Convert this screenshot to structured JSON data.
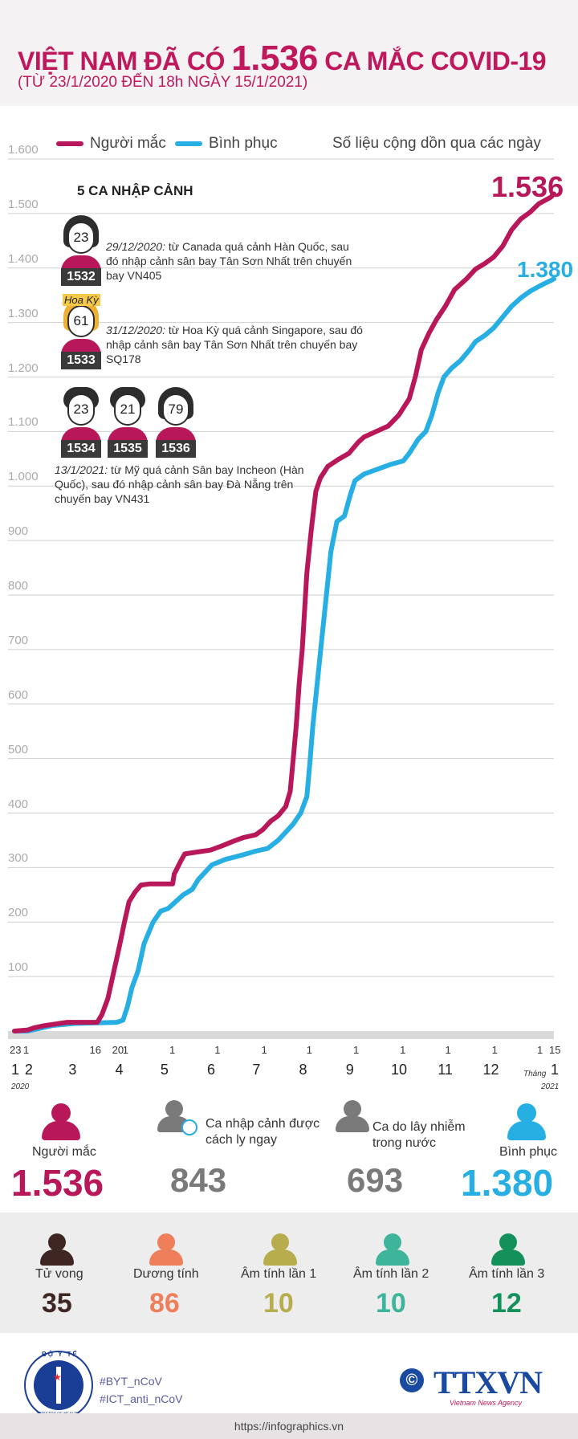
{
  "header": {
    "title_pre": "VIỆT NAM ĐÃ CÓ",
    "title_num": "1.536",
    "title_post": "CA MẮC COVID-19",
    "subtitle": "(TỪ 23/1/2020 ĐẾN 18h NGÀY 15/1/2021)"
  },
  "legend": {
    "infected": "Người mắc",
    "recovered": "Bình phục",
    "note": "Số liệu cộng dồn qua các ngày"
  },
  "colors": {
    "infected": "#b8185a",
    "recovered": "#27aee3",
    "grid": "#cfcfcf",
    "dark": "#3e2723",
    "orange": "#ef7f5a",
    "olive": "#b7ad4c",
    "teal": "#3eb49a",
    "green": "#14915a",
    "gray": "#7a7a7a"
  },
  "chart_data": {
    "type": "line",
    "title": "",
    "xlabel": "",
    "ylabel": "",
    "ylim": [
      0,
      1600
    ],
    "yticks": [
      "100",
      "200",
      "300",
      "400",
      "500",
      "600",
      "700",
      "800",
      "900",
      "1.000",
      "1.100",
      "1.200",
      "1.300",
      "1.400",
      "1.500",
      "1.600"
    ],
    "x_day_ticks": [
      "23",
      "1",
      "16",
      "20",
      "1",
      "1",
      "1",
      "1",
      "1",
      "1",
      "1",
      "1",
      "1",
      "1",
      "15"
    ],
    "x_month_ticks": [
      "1",
      "2",
      "3",
      "4",
      "5",
      "6",
      "7",
      "8",
      "9",
      "10",
      "11",
      "12",
      "1"
    ],
    "x_year_start": "2020",
    "x_year_end": "2021",
    "x_unit": "Tháng",
    "x_day_positions": [
      0,
      9,
      53,
      68,
      75,
      106,
      136,
      167,
      197,
      228,
      259,
      289,
      320,
      350,
      358
    ],
    "series": [
      {
        "name": "Người mắc",
        "end_label": "1.536",
        "points": [
          [
            0,
            0
          ],
          [
            9,
            2
          ],
          [
            13,
            6
          ],
          [
            20,
            10
          ],
          [
            35,
            16
          ],
          [
            55,
            16
          ],
          [
            58,
            30
          ],
          [
            62,
            60
          ],
          [
            66,
            110
          ],
          [
            70,
            160
          ],
          [
            73,
            200
          ],
          [
            76,
            237
          ],
          [
            80,
            255
          ],
          [
            84,
            268
          ],
          [
            90,
            270
          ],
          [
            100,
            270
          ],
          [
            105,
            270
          ],
          [
            106,
            288
          ],
          [
            110,
            310
          ],
          [
            113,
            325
          ],
          [
            120,
            328
          ],
          [
            130,
            332
          ],
          [
            138,
            340
          ],
          [
            145,
            348
          ],
          [
            152,
            355
          ],
          [
            160,
            360
          ],
          [
            165,
            370
          ],
          [
            170,
            385
          ],
          [
            175,
            395
          ],
          [
            180,
            412
          ],
          [
            183,
            440
          ],
          [
            185,
            500
          ],
          [
            187,
            560
          ],
          [
            189,
            640
          ],
          [
            191,
            700
          ],
          [
            194,
            840
          ],
          [
            197,
            920
          ],
          [
            200,
            990
          ],
          [
            203,
            1015
          ],
          [
            208,
            1036
          ],
          [
            215,
            1049
          ],
          [
            222,
            1060
          ],
          [
            228,
            1080
          ],
          [
            232,
            1090
          ],
          [
            240,
            1100
          ],
          [
            248,
            1110
          ],
          [
            255,
            1130
          ],
          [
            262,
            1160
          ],
          [
            266,
            1200
          ],
          [
            270,
            1250
          ],
          [
            275,
            1280
          ],
          [
            280,
            1305
          ],
          [
            286,
            1330
          ],
          [
            292,
            1360
          ],
          [
            300,
            1380
          ],
          [
            306,
            1398
          ],
          [
            312,
            1408
          ],
          [
            318,
            1420
          ],
          [
            324,
            1440
          ],
          [
            330,
            1470
          ],
          [
            336,
            1490
          ],
          [
            342,
            1502
          ],
          [
            348,
            1518
          ],
          [
            352,
            1524
          ],
          [
            356,
            1530
          ],
          [
            358,
            1536
          ]
        ]
      },
      {
        "name": "Bình phục",
        "end_label": "1.380",
        "points": [
          [
            0,
            0
          ],
          [
            9,
            0
          ],
          [
            15,
            4
          ],
          [
            25,
            10
          ],
          [
            40,
            14
          ],
          [
            55,
            15
          ],
          [
            68,
            16
          ],
          [
            72,
            20
          ],
          [
            75,
            45
          ],
          [
            78,
            80
          ],
          [
            82,
            110
          ],
          [
            86,
            160
          ],
          [
            92,
            200
          ],
          [
            97,
            220
          ],
          [
            102,
            225
          ],
          [
            106,
            235
          ],
          [
            112,
            250
          ],
          [
            118,
            260
          ],
          [
            122,
            278
          ],
          [
            126,
            290
          ],
          [
            131,
            305
          ],
          [
            140,
            315
          ],
          [
            150,
            322
          ],
          [
            160,
            330
          ],
          [
            168,
            335
          ],
          [
            175,
            350
          ],
          [
            180,
            365
          ],
          [
            185,
            380
          ],
          [
            190,
            400
          ],
          [
            194,
            430
          ],
          [
            196,
            490
          ],
          [
            198,
            560
          ],
          [
            201,
            640
          ],
          [
            204,
            720
          ],
          [
            207,
            800
          ],
          [
            210,
            880
          ],
          [
            214,
            935
          ],
          [
            219,
            945
          ],
          [
            223,
            985
          ],
          [
            226,
            1010
          ],
          [
            232,
            1022
          ],
          [
            240,
            1030
          ],
          [
            250,
            1040
          ],
          [
            258,
            1046
          ],
          [
            262,
            1060
          ],
          [
            268,
            1086
          ],
          [
            273,
            1100
          ],
          [
            277,
            1130
          ],
          [
            281,
            1170
          ],
          [
            285,
            1200
          ],
          [
            290,
            1216
          ],
          [
            296,
            1230
          ],
          [
            302,
            1250
          ],
          [
            306,
            1265
          ],
          [
            312,
            1276
          ],
          [
            318,
            1290
          ],
          [
            324,
            1310
          ],
          [
            330,
            1330
          ],
          [
            336,
            1345
          ],
          [
            342,
            1357
          ],
          [
            348,
            1366
          ],
          [
            352,
            1372
          ],
          [
            356,
            1377
          ],
          [
            358,
            1380
          ]
        ]
      }
    ]
  },
  "imported": {
    "title": "5 CA NHẬP CẢNH",
    "cases": [
      {
        "age": "23",
        "id": "1532"
      },
      {
        "age": "61",
        "id": "1533"
      },
      {
        "age": "23",
        "id": "1534"
      },
      {
        "age": "21",
        "id": "1535"
      },
      {
        "age": "79",
        "id": "1536"
      }
    ],
    "hoa_ky_label": "Hoa Kỳ",
    "note1_date": "29/12/2020:",
    "note1_text": " từ Canada quá cảnh Hàn Quốc, sau đó nhập cảnh sân bay Tân Sơn Nhất trên chuyến bay VN405",
    "note2_date": "31/12/2020:",
    "note2_text": " từ Hoa Kỳ quá cảnh Singapore, sau đó nhập cảnh sân bay Tân Sơn Nhất trên chuyến bay SQ178",
    "note3_date": "13/1/2021:",
    "note3_text": " từ Mỹ quá cảnh Sân bay Incheon (Hàn Quốc), sau đó nhập cảnh sân bay Đà Nẵng trên chuyến bay VN431"
  },
  "stats_top": [
    {
      "label": "Người mắc",
      "value": "1.536"
    },
    {
      "label": "Ca nhập cảnh được cách ly ngay",
      "value": "843"
    },
    {
      "label": "Ca do lây nhiễm trong nước",
      "value": "693"
    },
    {
      "label": "Bình phục",
      "value": "1.380"
    }
  ],
  "stats_bottom": [
    {
      "label": "Tử vong",
      "value": "35"
    },
    {
      "label": "Dương tính",
      "value": "86"
    },
    {
      "label": "Âm tính lần 1",
      "value": "10"
    },
    {
      "label": "Âm tính lần 2",
      "value": "10"
    },
    {
      "label": "Âm tính lần 3",
      "value": "12"
    }
  ],
  "footer": {
    "tag1": "#BYT_nCoV",
    "tag2": "#ICT_anti_nCoV",
    "url": "https://infographics.vn",
    "agency": "TTXVN",
    "agency_sub": "Vietnam News Agency",
    "copyright": "©",
    "byt_text": "BỘ Y TẾ",
    "byt_sub": "MINISTRY OF HEALTH"
  }
}
